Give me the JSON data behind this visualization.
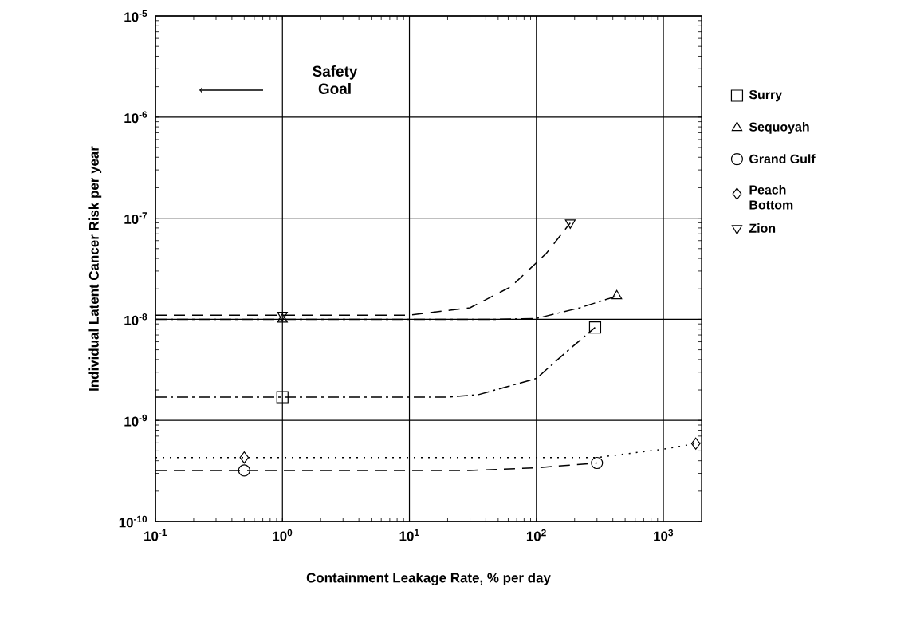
{
  "chart_data": {
    "type": "line",
    "xlabel": "Containment Leakage Rate, % per day",
    "ylabel": "Individual Latent Cancer Risk per year",
    "annotations": [
      "Safety Goal"
    ],
    "log": "xy",
    "grid": true,
    "legend": "right",
    "xlim": [
      0.1,
      2000
    ],
    "ylim": [
      1e-10,
      1e-05
    ],
    "xticks": [
      {
        "value": 0.1,
        "label": "10$^{-1}$"
      },
      {
        "value": 1,
        "label": "10$^{0}$"
      },
      {
        "value": 10,
        "label": "10$^{1}$"
      },
      {
        "value": 100,
        "label": "10$^{2}$"
      },
      {
        "value": 1000,
        "label": "10$^{3}$"
      }
    ],
    "yticks": [
      {
        "value": 1e-10,
        "label": "10$^{-10}$"
      },
      {
        "value": 1e-09,
        "label": "10$^{-9}$"
      },
      {
        "value": 1e-08,
        "label": "10$^{-8}$"
      },
      {
        "value": 1e-07,
        "label": "10$^{-7}$"
      },
      {
        "value": 1e-06,
        "label": "10$^{-6}$"
      },
      {
        "value": 1e-05,
        "label": "10$^{-5}$"
      }
    ],
    "series": [
      {
        "name": "Surry",
        "type": "scatter",
        "marker": "square",
        "color": "#000000",
        "x": [
          1,
          290
        ],
        "values": [
          1.7e-09,
          8.3e-09
        ]
      },
      {
        "name": "Sequoyah",
        "type": "scatter",
        "marker": "triangle",
        "color": "#000000",
        "x": [
          1,
          430
        ],
        "values": [
          1e-08,
          1.7e-08
        ]
      },
      {
        "name": "Grand Gulf",
        "type": "scatter",
        "marker": "circle",
        "color": "#000000",
        "x": [
          0.5,
          300
        ],
        "values": [
          3.2e-10,
          3.8e-10
        ]
      },
      {
        "name": "Peach Bottom",
        "type": "scatter",
        "marker": "diamond",
        "color": "#000000",
        "x": [
          0.5,
          1800
        ],
        "values": [
          4.3e-10,
          5.9e-10
        ]
      },
      {
        "name": "Zion",
        "type": "scatter",
        "marker": "triangle_down",
        "color": "#000000",
        "x": [
          1,
          185
        ],
        "values": [
          1.1e-08,
          9e-08
        ]
      },
      {
        "line_style": "dashdot",
        "color": "#000000",
        "x": [
          0.1,
          20,
          35,
          100,
          180,
          290
        ],
        "values": [
          1.7e-09,
          1.7e-09,
          1.8e-09,
          2.6e-09,
          5e-09,
          8.3e-09
        ]
      },
      {
        "line_style": "dashdot",
        "color": "#000000",
        "x": [
          0.1,
          50,
          100,
          220,
          430
        ],
        "values": [
          1e-08,
          1e-08,
          1.02e-08,
          1.3e-08,
          1.7e-08
        ]
      },
      {
        "line_style": "dashed",
        "color": "#000000",
        "x": [
          0.1,
          30,
          100,
          300
        ],
        "values": [
          3.2e-10,
          3.2e-10,
          3.4e-10,
          3.8e-10
        ]
      },
      {
        "line_style": "dotted",
        "color": "#000000",
        "x": [
          0.1,
          300,
          1000,
          1800
        ],
        "values": [
          4.3e-10,
          4.3e-10,
          5.2e-10,
          5.9e-10
        ]
      },
      {
        "line_style": "dashed",
        "color": "#000000",
        "x": [
          0.1,
          10,
          30,
          63,
          120,
          185
        ],
        "values": [
          1.1e-08,
          1.1e-08,
          1.3e-08,
          2.1e-08,
          4.5e-08,
          9e-08
        ]
      }
    ]
  }
}
